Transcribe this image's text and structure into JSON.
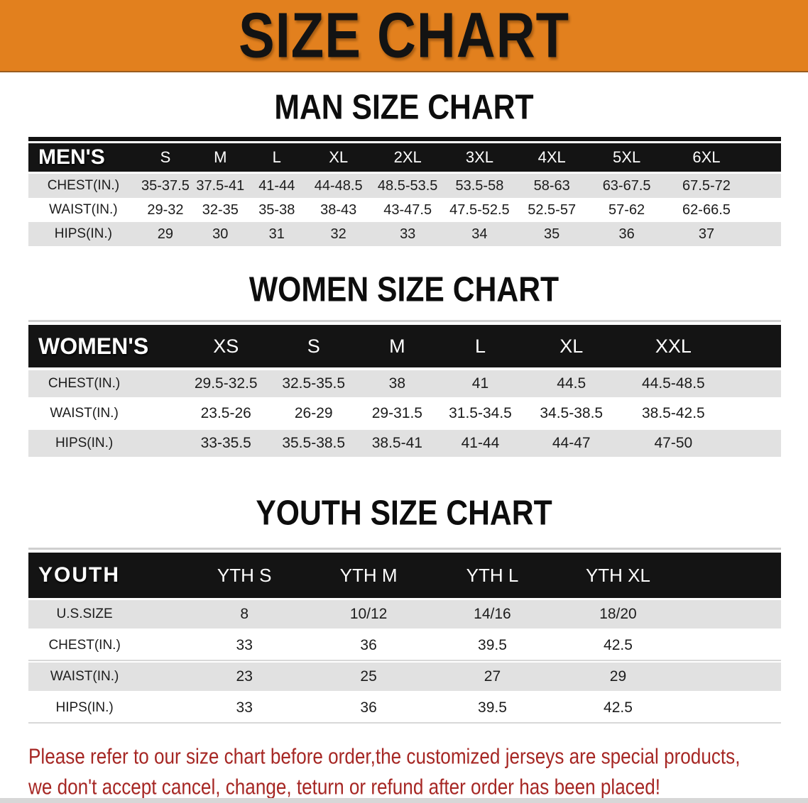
{
  "banner": {
    "title": "SIZE CHART"
  },
  "colors": {
    "banner_bg": "#e2801e",
    "table_header_bg": "#141414",
    "row_gray": "#e1e1e1",
    "disclaimer_red": "#a62724"
  },
  "men": {
    "heading": "MAN SIZE CHART",
    "table": {
      "label": "MEN'S",
      "columns": [
        "S",
        "M",
        "L",
        "XL",
        "2XL",
        "3XL",
        "4XL",
        "5XL",
        "6XL"
      ],
      "rows": [
        {
          "label": "CHEST(IN.)",
          "values": [
            "35-37.5",
            "37.5-41",
            "41-44",
            "44-48.5",
            "48.5-53.5",
            "53.5-58",
            "58-63",
            "63-67.5",
            "67.5-72"
          ]
        },
        {
          "label": "WAIST(IN.)",
          "values": [
            "29-32",
            "32-35",
            "35-38",
            "38-43",
            "43-47.5",
            "47.5-52.5",
            "52.5-57",
            "57-62",
            "62-66.5"
          ]
        },
        {
          "label": "HIPS(IN.)",
          "values": [
            "29",
            "30",
            "31",
            "32",
            "33",
            "34",
            "35",
            "36",
            "37"
          ]
        }
      ]
    }
  },
  "women": {
    "heading": "WOMEN SIZE CHART",
    "table": {
      "label": "WOMEN'S",
      "columns": [
        "XS",
        "S",
        "M",
        "L",
        "XL",
        "XXL"
      ],
      "rows": [
        {
          "label": "CHEST(IN.)",
          "values": [
            "29.5-32.5",
            "32.5-35.5",
            "38",
            "41",
            "44.5",
            "44.5-48.5"
          ]
        },
        {
          "label": "WAIST(IN.)",
          "values": [
            "23.5-26",
            "26-29",
            "29-31.5",
            "31.5-34.5",
            "34.5-38.5",
            "38.5-42.5"
          ]
        },
        {
          "label": "HIPS(IN.)",
          "values": [
            "33-35.5",
            "35.5-38.5",
            "38.5-41",
            "41-44",
            "44-47",
            "47-50"
          ]
        }
      ]
    }
  },
  "youth": {
    "heading": "YOUTH SIZE CHART",
    "table": {
      "label": "YOUTH",
      "columns": [
        "YTH S",
        "YTH M",
        "YTH L",
        "YTH XL"
      ],
      "rows": [
        {
          "label": "U.S.SIZE",
          "values": [
            "8",
            "10/12",
            "14/16",
            "18/20"
          ]
        },
        {
          "label": "CHEST(IN.)",
          "values": [
            "33",
            "36",
            "39.5",
            "42.5"
          ]
        },
        {
          "label": "WAIST(IN.)",
          "values": [
            "23",
            "25",
            "27",
            "29"
          ]
        },
        {
          "label": "HIPS(IN.)",
          "values": [
            "33",
            "36",
            "39.5",
            "42.5"
          ]
        }
      ]
    }
  },
  "disclaimer": {
    "line1": "Please refer to our size chart before order,the customized jerseys are special products,",
    "line2": "we don't accept cancel, change, teturn or refund after order has been placed!"
  }
}
